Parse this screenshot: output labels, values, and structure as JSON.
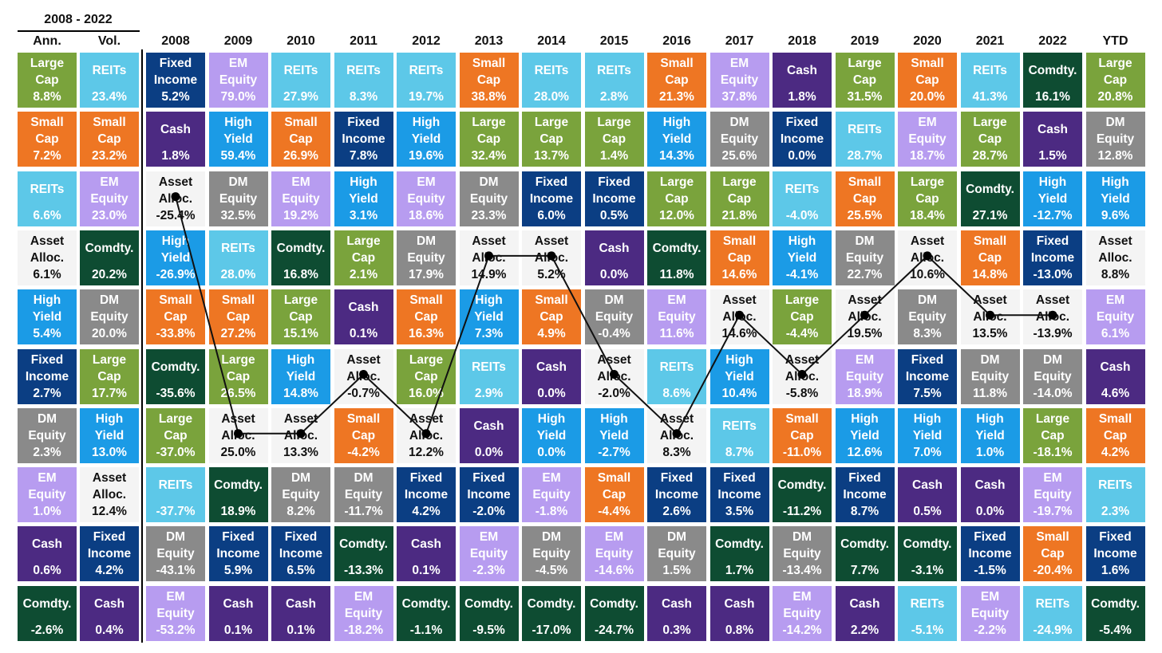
{
  "colors": {
    "Large Cap": "#7aa33c",
    "Small Cap": "#ee7623",
    "REITs": "#5dc8e8",
    "Fixed Income": "#0b3e83",
    "EM Equity": "#b79cf0",
    "High Yield": "#1b9be6",
    "Cash": "#4c2a82",
    "DM Equity": "#8a8a8a",
    "Comdty.": "#0e4c32",
    "Asset Alloc.": "#f4f4f4"
  },
  "header": {
    "period": "2008 - 2022",
    "ann": "Ann.",
    "vol": "Vol."
  },
  "chart_data": {
    "type": "table",
    "columns": [
      "2008",
      "2009",
      "2010",
      "2011",
      "2012",
      "2013",
      "2014",
      "2015",
      "2016",
      "2017",
      "2018",
      "2019",
      "2020",
      "2021",
      "2022",
      "YTD"
    ],
    "summary": {
      "ann": [
        {
          "asset": "Large Cap",
          "value": "8.8%"
        },
        {
          "asset": "Small Cap",
          "value": "7.2%"
        },
        {
          "asset": "REITs",
          "value": "6.6%"
        },
        {
          "asset": "Asset Alloc.",
          "value": "6.1%"
        },
        {
          "asset": "High Yield",
          "value": "5.4%"
        },
        {
          "asset": "Fixed Income",
          "value": "2.7%"
        },
        {
          "asset": "DM Equity",
          "value": "2.3%"
        },
        {
          "asset": "EM Equity",
          "value": "1.0%"
        },
        {
          "asset": "Cash",
          "value": "0.6%"
        },
        {
          "asset": "Comdty.",
          "value": "-2.6%"
        }
      ],
      "vol": [
        {
          "asset": "REITs",
          "value": "23.4%"
        },
        {
          "asset": "Small Cap",
          "value": "23.2%"
        },
        {
          "asset": "EM Equity",
          "value": "23.0%"
        },
        {
          "asset": "Comdty.",
          "value": "20.2%"
        },
        {
          "asset": "DM Equity",
          "value": "20.0%"
        },
        {
          "asset": "Large Cap",
          "value": "17.7%"
        },
        {
          "asset": "High Yield",
          "value": "13.0%"
        },
        {
          "asset": "Asset Alloc.",
          "value": "12.4%"
        },
        {
          "asset": "Fixed Income",
          "value": "4.2%"
        },
        {
          "asset": "Cash",
          "value": "0.4%"
        }
      ]
    },
    "years": [
      [
        {
          "asset": "Fixed Income",
          "value": "5.2%"
        },
        {
          "asset": "Cash",
          "value": "1.8%"
        },
        {
          "asset": "Asset Alloc.",
          "value": "-25.4%"
        },
        {
          "asset": "High Yield",
          "value": "-26.9%"
        },
        {
          "asset": "Small Cap",
          "value": "-33.8%"
        },
        {
          "asset": "Comdty.",
          "value": "-35.6%"
        },
        {
          "asset": "Large Cap",
          "value": "-37.0%"
        },
        {
          "asset": "REITs",
          "value": "-37.7%"
        },
        {
          "asset": "DM Equity",
          "value": "-43.1%"
        },
        {
          "asset": "EM Equity",
          "value": "-53.2%"
        }
      ],
      [
        {
          "asset": "EM Equity",
          "value": "79.0%"
        },
        {
          "asset": "High Yield",
          "value": "59.4%"
        },
        {
          "asset": "DM Equity",
          "value": "32.5%"
        },
        {
          "asset": "REITs",
          "value": "28.0%"
        },
        {
          "asset": "Small Cap",
          "value": "27.2%"
        },
        {
          "asset": "Large Cap",
          "value": "26.5%"
        },
        {
          "asset": "Asset Alloc.",
          "value": "25.0%"
        },
        {
          "asset": "Comdty.",
          "value": "18.9%"
        },
        {
          "asset": "Fixed Income",
          "value": "5.9%"
        },
        {
          "asset": "Cash",
          "value": "0.1%"
        }
      ],
      [
        {
          "asset": "REITs",
          "value": "27.9%"
        },
        {
          "asset": "Small Cap",
          "value": "26.9%"
        },
        {
          "asset": "EM Equity",
          "value": "19.2%"
        },
        {
          "asset": "Comdty.",
          "value": "16.8%"
        },
        {
          "asset": "Large Cap",
          "value": "15.1%"
        },
        {
          "asset": "High Yield",
          "value": "14.8%"
        },
        {
          "asset": "Asset Alloc.",
          "value": "13.3%"
        },
        {
          "asset": "DM Equity",
          "value": "8.2%"
        },
        {
          "asset": "Fixed Income",
          "value": "6.5%"
        },
        {
          "asset": "Cash",
          "value": "0.1%"
        }
      ],
      [
        {
          "asset": "REITs",
          "value": "8.3%"
        },
        {
          "asset": "Fixed Income",
          "value": "7.8%"
        },
        {
          "asset": "High Yield",
          "value": "3.1%"
        },
        {
          "asset": "Large Cap",
          "value": "2.1%"
        },
        {
          "asset": "Cash",
          "value": "0.1%"
        },
        {
          "asset": "Asset Alloc.",
          "value": "-0.7%"
        },
        {
          "asset": "Small Cap",
          "value": "-4.2%"
        },
        {
          "asset": "DM Equity",
          "value": "-11.7%"
        },
        {
          "asset": "Comdty.",
          "value": "-13.3%"
        },
        {
          "asset": "EM Equity",
          "value": "-18.2%"
        }
      ],
      [
        {
          "asset": "REITs",
          "value": "19.7%"
        },
        {
          "asset": "High Yield",
          "value": "19.6%"
        },
        {
          "asset": "EM Equity",
          "value": "18.6%"
        },
        {
          "asset": "DM Equity",
          "value": "17.9%"
        },
        {
          "asset": "Small Cap",
          "value": "16.3%"
        },
        {
          "asset": "Large Cap",
          "value": "16.0%"
        },
        {
          "asset": "Asset Alloc.",
          "value": "12.2%"
        },
        {
          "asset": "Fixed Income",
          "value": "4.2%"
        },
        {
          "asset": "Cash",
          "value": "0.1%"
        },
        {
          "asset": "Comdty.",
          "value": "-1.1%"
        }
      ],
      [
        {
          "asset": "Small Cap",
          "value": "38.8%"
        },
        {
          "asset": "Large Cap",
          "value": "32.4%"
        },
        {
          "asset": "DM Equity",
          "value": "23.3%"
        },
        {
          "asset": "Asset Alloc.",
          "value": "14.9%"
        },
        {
          "asset": "High Yield",
          "value": "7.3%"
        },
        {
          "asset": "REITs",
          "value": "2.9%"
        },
        {
          "asset": "Cash",
          "value": "0.0%"
        },
        {
          "asset": "Fixed Income",
          "value": "-2.0%"
        },
        {
          "asset": "EM Equity",
          "value": "-2.3%"
        },
        {
          "asset": "Comdty.",
          "value": "-9.5%"
        }
      ],
      [
        {
          "asset": "REITs",
          "value": "28.0%"
        },
        {
          "asset": "Large Cap",
          "value": "13.7%"
        },
        {
          "asset": "Fixed Income",
          "value": "6.0%"
        },
        {
          "asset": "Asset Alloc.",
          "value": "5.2%"
        },
        {
          "asset": "Small Cap",
          "value": "4.9%"
        },
        {
          "asset": "Cash",
          "value": "0.0%"
        },
        {
          "asset": "High Yield",
          "value": "0.0%"
        },
        {
          "asset": "EM Equity",
          "value": "-1.8%"
        },
        {
          "asset": "DM Equity",
          "value": "-4.5%"
        },
        {
          "asset": "Comdty.",
          "value": "-17.0%"
        }
      ],
      [
        {
          "asset": "REITs",
          "value": "2.8%"
        },
        {
          "asset": "Large Cap",
          "value": "1.4%"
        },
        {
          "asset": "Fixed Income",
          "value": "0.5%"
        },
        {
          "asset": "Cash",
          "value": "0.0%"
        },
        {
          "asset": "DM Equity",
          "value": "-0.4%"
        },
        {
          "asset": "Asset Alloc.",
          "value": "-2.0%"
        },
        {
          "asset": "High Yield",
          "value": "-2.7%"
        },
        {
          "asset": "Small Cap",
          "value": "-4.4%"
        },
        {
          "asset": "EM Equity",
          "value": "-14.6%"
        },
        {
          "asset": "Comdty.",
          "value": "-24.7%"
        }
      ],
      [
        {
          "asset": "Small Cap",
          "value": "21.3%"
        },
        {
          "asset": "High Yield",
          "value": "14.3%"
        },
        {
          "asset": "Large Cap",
          "value": "12.0%"
        },
        {
          "asset": "Comdty.",
          "value": "11.8%"
        },
        {
          "asset": "EM Equity",
          "value": "11.6%"
        },
        {
          "asset": "REITs",
          "value": "8.6%"
        },
        {
          "asset": "Asset Alloc.",
          "value": "8.3%"
        },
        {
          "asset": "Fixed Income",
          "value": "2.6%"
        },
        {
          "asset": "DM Equity",
          "value": "1.5%"
        },
        {
          "asset": "Cash",
          "value": "0.3%"
        }
      ],
      [
        {
          "asset": "EM Equity",
          "value": "37.8%"
        },
        {
          "asset": "DM Equity",
          "value": "25.6%"
        },
        {
          "asset": "Large Cap",
          "value": "21.8%"
        },
        {
          "asset": "Small Cap",
          "value": "14.6%"
        },
        {
          "asset": "Asset Alloc.",
          "value": "14.6%"
        },
        {
          "asset": "High Yield",
          "value": "10.4%"
        },
        {
          "asset": "REITs",
          "value": "8.7%"
        },
        {
          "asset": "Fixed Income",
          "value": "3.5%"
        },
        {
          "asset": "Comdty.",
          "value": "1.7%"
        },
        {
          "asset": "Cash",
          "value": "0.8%"
        }
      ],
      [
        {
          "asset": "Cash",
          "value": "1.8%"
        },
        {
          "asset": "Fixed Income",
          "value": "0.0%"
        },
        {
          "asset": "REITs",
          "value": "-4.0%"
        },
        {
          "asset": "High Yield",
          "value": "-4.1%"
        },
        {
          "asset": "Large Cap",
          "value": "-4.4%"
        },
        {
          "asset": "Asset Alloc.",
          "value": "-5.8%"
        },
        {
          "asset": "Small Cap",
          "value": "-11.0%"
        },
        {
          "asset": "Comdty.",
          "value": "-11.2%"
        },
        {
          "asset": "DM Equity",
          "value": "-13.4%"
        },
        {
          "asset": "EM Equity",
          "value": "-14.2%"
        }
      ],
      [
        {
          "asset": "Large Cap",
          "value": "31.5%"
        },
        {
          "asset": "REITs",
          "value": "28.7%"
        },
        {
          "asset": "Small Cap",
          "value": "25.5%"
        },
        {
          "asset": "DM Equity",
          "value": "22.7%"
        },
        {
          "asset": "Asset Alloc.",
          "value": "19.5%"
        },
        {
          "asset": "EM Equity",
          "value": "18.9%"
        },
        {
          "asset": "High Yield",
          "value": "12.6%"
        },
        {
          "asset": "Fixed Income",
          "value": "8.7%"
        },
        {
          "asset": "Comdty.",
          "value": "7.7%"
        },
        {
          "asset": "Cash",
          "value": "2.2%"
        }
      ],
      [
        {
          "asset": "Small Cap",
          "value": "20.0%"
        },
        {
          "asset": "EM Equity",
          "value": "18.7%"
        },
        {
          "asset": "Large Cap",
          "value": "18.4%"
        },
        {
          "asset": "Asset Alloc.",
          "value": "10.6%"
        },
        {
          "asset": "DM Equity",
          "value": "8.3%"
        },
        {
          "asset": "Fixed Income",
          "value": "7.5%"
        },
        {
          "asset": "High Yield",
          "value": "7.0%"
        },
        {
          "asset": "Cash",
          "value": "0.5%"
        },
        {
          "asset": "Comdty.",
          "value": "-3.1%"
        },
        {
          "asset": "REITs",
          "value": "-5.1%"
        }
      ],
      [
        {
          "asset": "REITs",
          "value": "41.3%"
        },
        {
          "asset": "Large Cap",
          "value": "28.7%"
        },
        {
          "asset": "Comdty.",
          "value": "27.1%"
        },
        {
          "asset": "Small Cap",
          "value": "14.8%"
        },
        {
          "asset": "Asset Alloc.",
          "value": "13.5%"
        },
        {
          "asset": "DM Equity",
          "value": "11.8%"
        },
        {
          "asset": "High Yield",
          "value": "1.0%"
        },
        {
          "asset": "Cash",
          "value": "0.0%"
        },
        {
          "asset": "Fixed Income",
          "value": "-1.5%"
        },
        {
          "asset": "EM Equity",
          "value": "-2.2%"
        }
      ],
      [
        {
          "asset": "Comdty.",
          "value": "16.1%"
        },
        {
          "asset": "Cash",
          "value": "1.5%"
        },
        {
          "asset": "High Yield",
          "value": "-12.7%"
        },
        {
          "asset": "Fixed Income",
          "value": "-13.0%"
        },
        {
          "asset": "Asset Alloc.",
          "value": "-13.9%"
        },
        {
          "asset": "DM Equity",
          "value": "-14.0%"
        },
        {
          "asset": "Large Cap",
          "value": "-18.1%"
        },
        {
          "asset": "EM Equity",
          "value": "-19.7%"
        },
        {
          "asset": "Small Cap",
          "value": "-20.4%"
        },
        {
          "asset": "REITs",
          "value": "-24.9%"
        }
      ],
      [
        {
          "asset": "Large Cap",
          "value": "20.8%"
        },
        {
          "asset": "DM Equity",
          "value": "12.8%"
        },
        {
          "asset": "High Yield",
          "value": "9.6%"
        },
        {
          "asset": "Asset Alloc.",
          "value": "8.8%"
        },
        {
          "asset": "EM Equity",
          "value": "6.1%"
        },
        {
          "asset": "Cash",
          "value": "4.6%"
        },
        {
          "asset": "Small Cap",
          "value": "4.2%"
        },
        {
          "asset": "REITs",
          "value": "2.3%"
        },
        {
          "asset": "Fixed Income",
          "value": "1.6%"
        },
        {
          "asset": "Comdty.",
          "value": "-5.4%"
        }
      ]
    ]
  }
}
